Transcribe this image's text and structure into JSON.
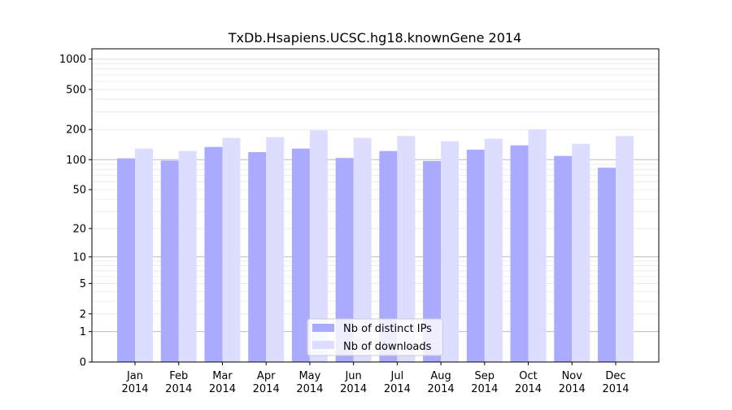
{
  "chart_data": {
    "type": "bar",
    "title": "TxDb.Hsapiens.UCSC.hg18.knownGene 2014",
    "xlabel": "",
    "ylabel": "",
    "yscale": "log(y+1)",
    "ylim": [
      0,
      1265
    ],
    "grid": true,
    "legend_placement": "bottom-center",
    "categories": [
      "Jan\n2014",
      "Feb\n2014",
      "Mar\n2014",
      "Apr\n2014",
      "May\n2014",
      "Jun\n2014",
      "Jul\n2014",
      "Aug\n2014",
      "Sep\n2014",
      "Oct\n2014",
      "Nov\n2014",
      "Dec\n2014"
    ],
    "yticks": [
      0,
      1,
      2,
      5,
      10,
      20,
      50,
      100,
      200,
      500,
      1000
    ],
    "series": [
      {
        "name": "Nb of distinct IPs",
        "color": "#aaaaff",
        "values": [
          103,
          98,
          134,
          119,
          129,
          104,
          122,
          97,
          126,
          139,
          109,
          83
        ]
      },
      {
        "name": "Nb of downloads",
        "color": "#ddddff",
        "values": [
          129,
          122,
          165,
          168,
          196,
          165,
          172,
          153,
          162,
          200,
          144,
          172
        ]
      }
    ]
  }
}
